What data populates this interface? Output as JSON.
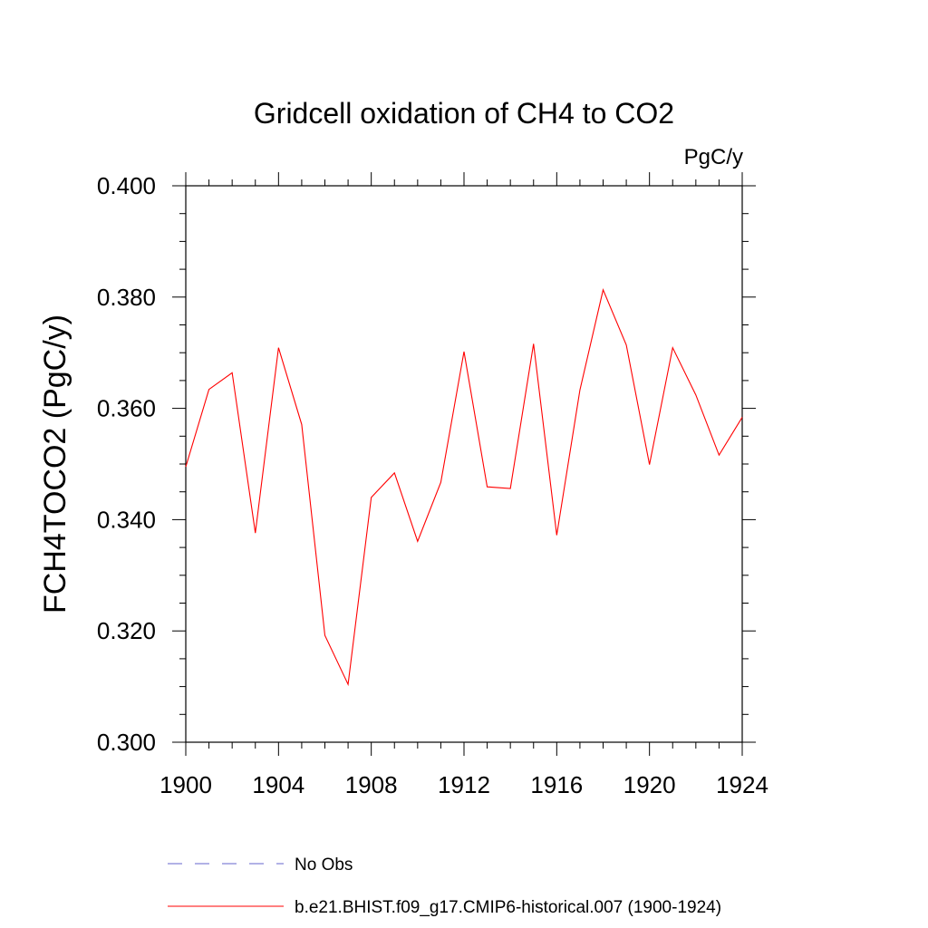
{
  "chart_data": {
    "type": "line",
    "title": "Gridcell oxidation of CH4 to CO2",
    "units_label": "PgC/y",
    "ylabel": "FCH4TOCO2  (PgC/y)",
    "xlabel": "",
    "xlim": [
      1900,
      1924
    ],
    "ylim": [
      0.3,
      0.4
    ],
    "x_ticks": [
      "1900",
      "1904",
      "1908",
      "1912",
      "1916",
      "1920",
      "1924"
    ],
    "y_ticks": [
      "0.300",
      "0.320",
      "0.340",
      "0.360",
      "0.380",
      "0.400"
    ],
    "grid": false,
    "legend_position": "bottom",
    "series": [
      {
        "name": "b.e21.BHIST.f09_g17.CMIP6-historical.007 (1900-1924)",
        "color": "#ff0000",
        "style": "solid",
        "x": [
          1900,
          1901,
          1902,
          1903,
          1904,
          1905,
          1906,
          1907,
          1908,
          1909,
          1910,
          1911,
          1912,
          1913,
          1914,
          1915,
          1916,
          1917,
          1918,
          1919,
          1920,
          1921,
          1922,
          1923,
          1924
        ],
        "values": [
          0.3495,
          0.3634,
          0.3664,
          0.3376,
          0.3709,
          0.3571,
          0.3192,
          0.3104,
          0.344,
          0.3484,
          0.3361,
          0.3467,
          0.3702,
          0.3459,
          0.3456,
          0.3716,
          0.3372,
          0.3633,
          0.3813,
          0.3714,
          0.3499,
          0.3709,
          0.3624,
          0.3516,
          0.3584
        ]
      }
    ],
    "legend": [
      {
        "label": "No Obs",
        "color": "#6666cc",
        "style": "dashed"
      },
      {
        "label": "b.e21.BHIST.f09_g17.CMIP6-historical.007 (1900-1924)",
        "color": "#ff0000",
        "style": "solid"
      }
    ]
  }
}
